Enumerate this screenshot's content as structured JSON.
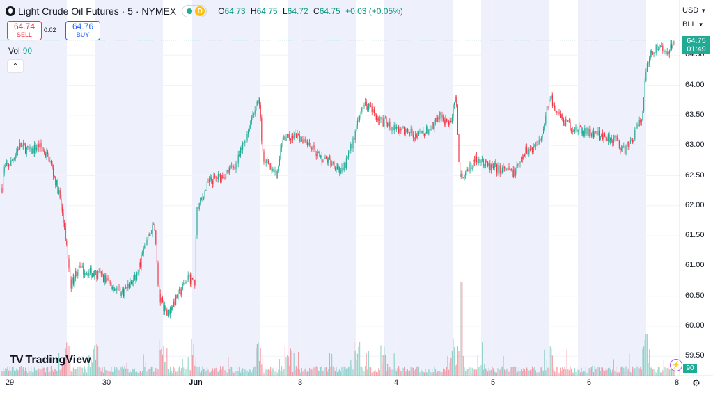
{
  "header": {
    "title": "Light Crude Oil Futures · 5 · NYMEX",
    "status_letter": "D",
    "ohlc": [
      {
        "k": "O",
        "v": "64.73"
      },
      {
        "k": "H",
        "v": "64.75"
      },
      {
        "k": "L",
        "v": "64.72"
      },
      {
        "k": "C",
        "v": "64.75"
      }
    ],
    "change": "+0.03 (+0.05%)"
  },
  "trade": {
    "sell_price": "64.74",
    "sell_label": "SELL",
    "spread": "0.02",
    "buy_price": "64.76",
    "buy_label": "BUY"
  },
  "volume": {
    "label": "Vol",
    "value": "90"
  },
  "axis": {
    "currency": "USD",
    "unit": "BLL",
    "last_price": "64.75",
    "countdown": "01:49",
    "volume_tag": "90"
  },
  "brand": {
    "name": "TradingView"
  },
  "colors": {
    "up": "#22ab94",
    "down": "#f23645",
    "session": "#eef0fc",
    "accent": "#2962ff"
  },
  "icons": {
    "settings": "gear-icon",
    "alert": "bolt-icon",
    "collapse": "chevron-up-icon",
    "status": "dot-icon"
  },
  "chart_data": {
    "type": "candlestick",
    "y_ticks": [
      "64.50",
      "64.00",
      "63.50",
      "63.00",
      "62.50",
      "62.00",
      "61.50",
      "61.00",
      "60.50",
      "60.00",
      "59.50"
    ],
    "x_ticks": [
      {
        "label": "29",
        "bold": false
      },
      {
        "label": "30",
        "bold": false
      },
      {
        "label": "Jun",
        "bold": true
      },
      {
        "label": "3",
        "bold": false
      },
      {
        "label": "4",
        "bold": false
      },
      {
        "label": "5",
        "bold": false
      },
      {
        "label": "6",
        "bold": false
      },
      {
        "label": "8",
        "bold": false
      }
    ],
    "ylim": [
      59.2,
      64.95
    ],
    "last_price": 64.75,
    "session_path": [
      [
        0,
        61.85
      ],
      [
        5,
        62.6
      ],
      [
        15,
        62.7
      ],
      [
        28,
        63.0
      ],
      [
        44,
        62.9
      ],
      [
        56,
        63.0
      ],
      [
        70,
        62.8
      ],
      [
        85,
        62.2
      ],
      [
        95,
        61.4
      ],
      [
        102,
        60.7
      ],
      [
        112,
        60.95
      ],
      [
        125,
        60.9
      ],
      [
        145,
        60.85
      ],
      [
        158,
        60.7
      ],
      [
        175,
        60.55
      ],
      [
        195,
        60.8
      ],
      [
        210,
        61.4
      ],
      [
        222,
        61.7
      ],
      [
        228,
        60.5
      ],
      [
        240,
        60.2
      ],
      [
        255,
        60.5
      ],
      [
        270,
        60.8
      ],
      [
        280,
        60.75
      ],
      [
        282,
        61.9
      ],
      [
        300,
        62.4
      ],
      [
        320,
        62.5
      ],
      [
        340,
        62.7
      ],
      [
        355,
        63.2
      ],
      [
        365,
        63.6
      ],
      [
        372,
        63.75
      ],
      [
        378,
        62.8
      ],
      [
        388,
        62.6
      ],
      [
        398,
        62.5
      ],
      [
        405,
        63.1
      ],
      [
        420,
        63.15
      ],
      [
        440,
        63.1
      ],
      [
        460,
        62.8
      ],
      [
        480,
        62.7
      ],
      [
        492,
        62.55
      ],
      [
        505,
        63.0
      ],
      [
        515,
        63.4
      ],
      [
        522,
        63.75
      ],
      [
        535,
        63.55
      ],
      [
        550,
        63.4
      ],
      [
        565,
        63.3
      ],
      [
        580,
        63.25
      ],
      [
        600,
        63.15
      ],
      [
        620,
        63.3
      ],
      [
        632,
        63.5
      ],
      [
        645,
        63.3
      ],
      [
        655,
        63.8
      ],
      [
        660,
        62.5
      ],
      [
        670,
        62.55
      ],
      [
        685,
        62.8
      ],
      [
        700,
        62.65
      ],
      [
        720,
        62.6
      ],
      [
        740,
        62.55
      ],
      [
        755,
        62.9
      ],
      [
        770,
        63.0
      ],
      [
        780,
        63.25
      ],
      [
        790,
        63.85
      ],
      [
        800,
        63.5
      ],
      [
        815,
        63.35
      ],
      [
        830,
        63.25
      ],
      [
        850,
        63.2
      ],
      [
        870,
        63.15
      ],
      [
        885,
        63.1
      ],
      [
        895,
        62.9
      ],
      [
        908,
        63.1
      ],
      [
        915,
        63.3
      ],
      [
        922,
        63.45
      ],
      [
        928,
        64.3
      ],
      [
        935,
        64.55
      ],
      [
        945,
        64.65
      ],
      [
        958,
        64.55
      ],
      [
        965,
        64.7
      ],
      [
        970,
        64.75
      ]
    ]
  }
}
